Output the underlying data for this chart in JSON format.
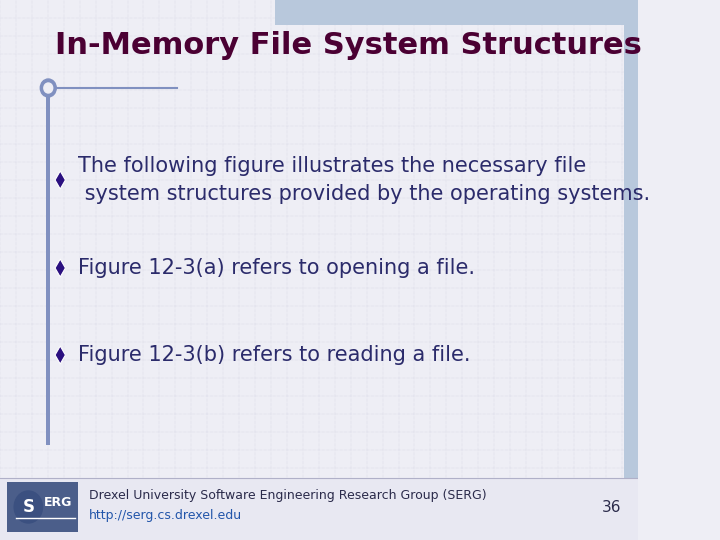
{
  "title": "In-Memory File System Structures",
  "title_color": "#4B0033",
  "title_fontsize": 22,
  "bg_color": "#EEEEF5",
  "grid_color": "#C8C8DC",
  "bullet_color": "#2B1080",
  "text_color": "#2B2B6B",
  "bullet_points": [
    "The following figure illustrates the necessary file\n system structures provided by the operating systems.",
    "Figure 12-3(a) refers to opening a file.",
    "Figure 12-3(b) refers to reading a file."
  ],
  "bullet_fontsize": 15,
  "footer_fontsize": 9,
  "page_number": "36",
  "header_bar_color": "#B8C8DC",
  "left_bar_color": "#8090C0",
  "title_underline_color": "#8090C0",
  "logo_bg_color": "#4B5E8A",
  "footer_line_color": "#B0B0C8",
  "footer_bg_color": "#E8E8F2"
}
